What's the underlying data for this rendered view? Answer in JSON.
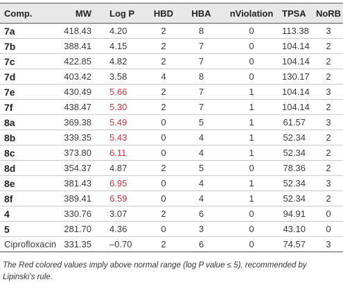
{
  "table": {
    "headers": [
      "Comp.",
      "MW",
      "Log P",
      "HBD",
      "HBA",
      "nViolation",
      "TPSA",
      "NoRB"
    ],
    "rows": [
      {
        "comp": "7a",
        "mw": "418.43",
        "logp": "4.20",
        "logp_red": false,
        "hbd": "2",
        "hba": "8",
        "nviol": "0",
        "tpsa": "113.38",
        "norb": "3"
      },
      {
        "comp": "7b",
        "mw": "388.41",
        "logp": "4.15",
        "logp_red": false,
        "hbd": "2",
        "hba": "7",
        "nviol": "0",
        "tpsa": "104.14",
        "norb": "2"
      },
      {
        "comp": "7c",
        "mw": "422.85",
        "logp": "4.82",
        "logp_red": false,
        "hbd": "2",
        "hba": "7",
        "nviol": "0",
        "tpsa": "104.14",
        "norb": "2"
      },
      {
        "comp": "7d",
        "mw": "403.42",
        "logp": "3.58",
        "logp_red": false,
        "hbd": "4",
        "hba": "8",
        "nviol": "0",
        "tpsa": "130.17",
        "norb": "2"
      },
      {
        "comp": "7e",
        "mw": "430.49",
        "logp": "5.66",
        "logp_red": true,
        "hbd": "2",
        "hba": "7",
        "nviol": "1",
        "tpsa": "104.14",
        "norb": "3"
      },
      {
        "comp": "7f",
        "mw": "438.47",
        "logp": "5.30",
        "logp_red": true,
        "hbd": "2",
        "hba": "7",
        "nviol": "1",
        "tpsa": "104.14",
        "norb": "2"
      },
      {
        "comp": "8a",
        "mw": "369.38",
        "logp": "5.49",
        "logp_red": true,
        "hbd": "0",
        "hba": "5",
        "nviol": "1",
        "tpsa": "61.57",
        "norb": "3"
      },
      {
        "comp": "8b",
        "mw": "339.35",
        "logp": "5.43",
        "logp_red": true,
        "hbd": "0",
        "hba": "4",
        "nviol": "1",
        "tpsa": "52.34",
        "norb": "2"
      },
      {
        "comp": "8c",
        "mw": "373.80",
        "logp": "6.11",
        "logp_red": true,
        "hbd": "0",
        "hba": "4",
        "nviol": "1",
        "tpsa": "52.34",
        "norb": "2"
      },
      {
        "comp": "8d",
        "mw": "354.37",
        "logp": "4.87",
        "logp_red": false,
        "hbd": "2",
        "hba": "5",
        "nviol": "0",
        "tpsa": "78.36",
        "norb": "2"
      },
      {
        "comp": "8e",
        "mw": "381.43",
        "logp": "6.95",
        "logp_red": true,
        "hbd": "0",
        "hba": "4",
        "nviol": "1",
        "tpsa": "52.34",
        "norb": "3"
      },
      {
        "comp": "8f",
        "mw": "389.41",
        "logp": "6.59",
        "logp_red": true,
        "hbd": "0",
        "hba": "4",
        "nviol": "1",
        "tpsa": "52.34",
        "norb": "2"
      },
      {
        "comp": "4",
        "mw": "330.76",
        "logp": "3.07",
        "logp_red": false,
        "hbd": "2",
        "hba": "6",
        "nviol": "0",
        "tpsa": "94.91",
        "norb": "0"
      },
      {
        "comp": "5",
        "mw": "281.70",
        "logp": "4.36",
        "logp_red": false,
        "hbd": "0",
        "hba": "3",
        "nviol": "0",
        "tpsa": "43.10",
        "norb": "0"
      },
      {
        "comp": "Ciprofloxacin",
        "mw": "331.35",
        "logp": "–0.70",
        "logp_red": false,
        "hbd": "2",
        "hba": "6",
        "nviol": "0",
        "tpsa": "74.57",
        "norb": "3"
      }
    ]
  },
  "footnote": "The Red colored values imply above normal range (log P value ≤ 5), recommended by Lipinski’s rule.",
  "colors": {
    "header_bg": "#e8e8e8",
    "highlight": "#d0303a"
  }
}
